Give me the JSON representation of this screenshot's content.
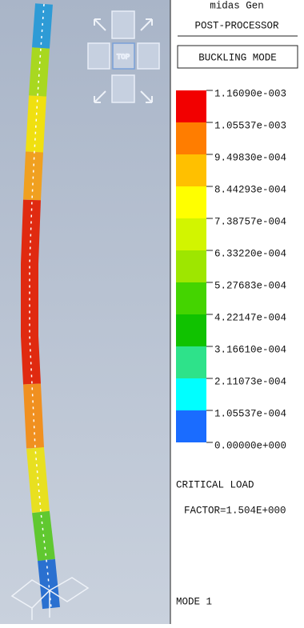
{
  "header": {
    "app": "midas Gen",
    "module": "POST-PROCESSOR",
    "result": "BUCKLING MODE"
  },
  "view_cube": {
    "label": "TOP"
  },
  "legend": {
    "labels": [
      "1.16090e-003",
      "1.05537e-003",
      "9.49830e-004",
      "8.44293e-004",
      "7.38757e-004",
      "6.33220e-004",
      "5.27683e-004",
      "4.22147e-004",
      "3.16610e-004",
      "2.11073e-004",
      "1.05537e-004",
      "0.00000e+000"
    ],
    "colors": [
      "#f20000",
      "#ff7d00",
      "#ffc000",
      "#ffff00",
      "#d2f500",
      "#9ee600",
      "#44d400",
      "#10c200",
      "#2ee28a",
      "#00ffff",
      "#1a6cff"
    ]
  },
  "footer": {
    "line1": "CRITICAL LOAD",
    "line2": "FACTOR=1.504E+000",
    "mode": "MODE 1"
  }
}
